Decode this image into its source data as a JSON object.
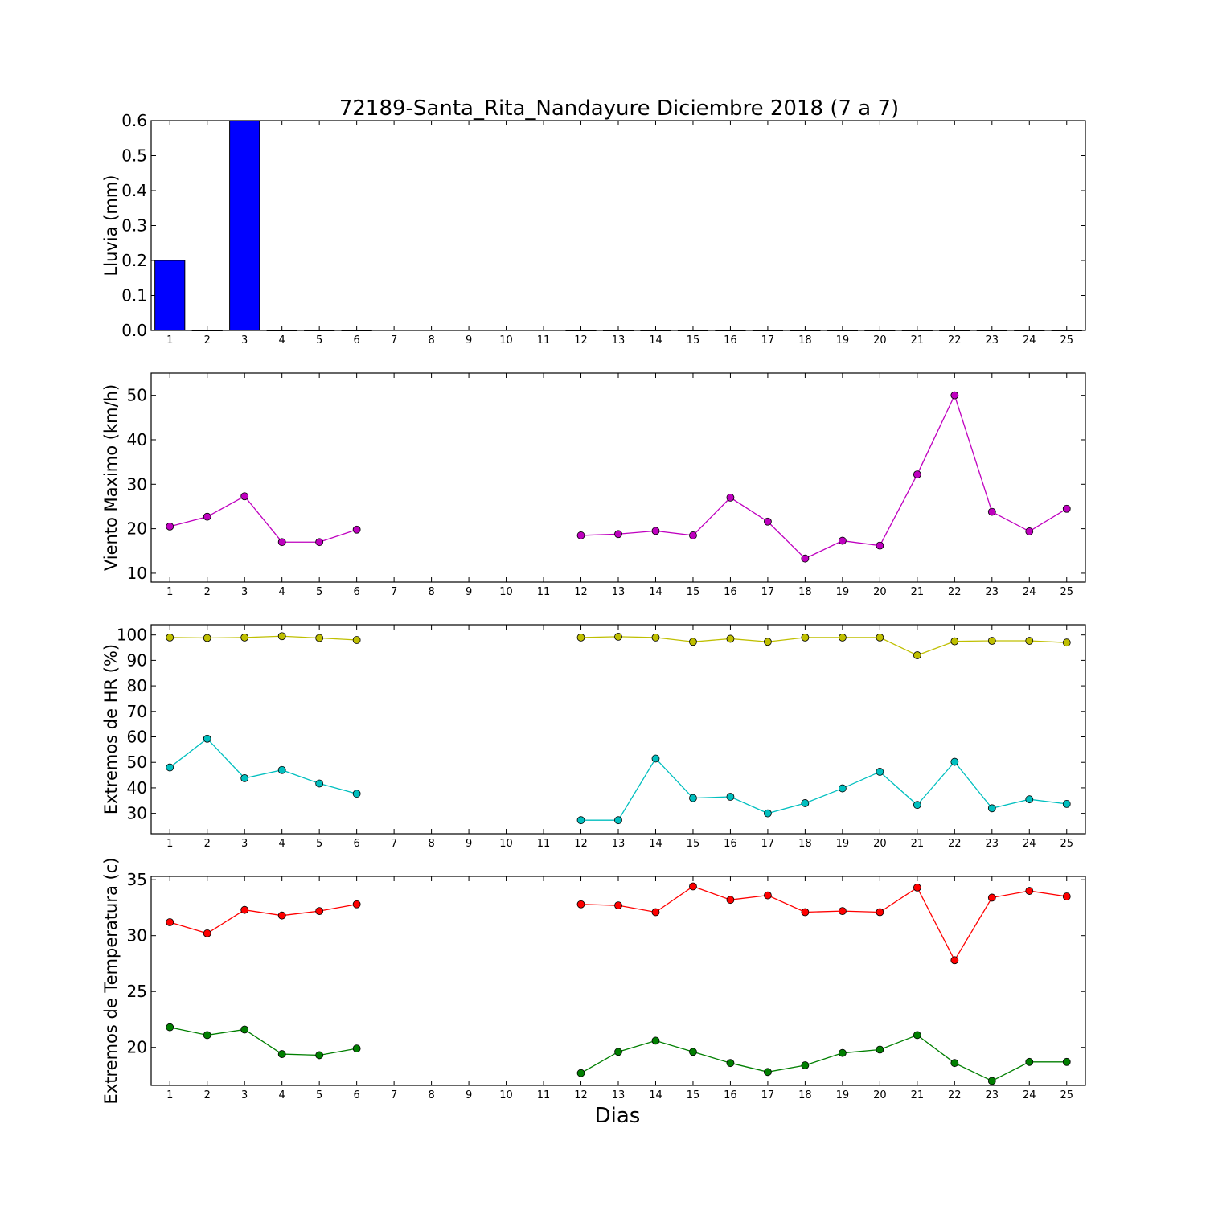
{
  "figure": {
    "title": "72189-Santa_Rita_Nandayure Diciembre 2018  (7 a 7)",
    "xlabel": "Dias"
  },
  "chart_data": [
    {
      "type": "bar",
      "id": "rain",
      "ylabel": "Lluvia (mm)",
      "x": [
        1,
        2,
        3,
        4,
        5,
        6,
        7,
        8,
        9,
        10,
        11,
        12,
        13,
        14,
        15,
        16,
        17,
        18,
        19,
        20,
        21,
        22,
        23,
        24,
        25
      ],
      "values": [
        0.2,
        0,
        0.6,
        0,
        0,
        0,
        null,
        null,
        null,
        null,
        null,
        0,
        0,
        0,
        0,
        0,
        0,
        0,
        0,
        0,
        0,
        0,
        0,
        0,
        0
      ],
      "ylim": [
        0,
        0.6
      ],
      "yticks": [
        0.0,
        0.1,
        0.2,
        0.3,
        0.4,
        0.5,
        0.6
      ],
      "ytick_labels": [
        "0.0",
        "0.1",
        "0.2",
        "0.3",
        "0.4",
        "0.5",
        "0.6"
      ],
      "color": "#0000ff"
    },
    {
      "type": "line",
      "id": "wind",
      "ylabel": "Viento Maximo (km/h)",
      "x": [
        1,
        2,
        3,
        4,
        5,
        6,
        7,
        8,
        9,
        10,
        11,
        12,
        13,
        14,
        15,
        16,
        17,
        18,
        19,
        20,
        21,
        22,
        23,
        24,
        25
      ],
      "ylim": [
        8,
        55
      ],
      "yticks": [
        10,
        20,
        30,
        40,
        50
      ],
      "ytick_labels": [
        "10",
        "20",
        "30",
        "40",
        "50"
      ],
      "series": [
        {
          "color": "#bf00bf",
          "values": [
            20.5,
            22.7,
            27.3,
            17,
            17,
            19.8,
            null,
            null,
            null,
            null,
            null,
            18.5,
            18.8,
            19.5,
            18.5,
            27,
            21.6,
            13.3,
            17.3,
            16.2,
            32.2,
            50,
            23.8,
            19.4,
            24.5
          ]
        }
      ]
    },
    {
      "type": "line",
      "id": "humidity",
      "ylabel": "Extremos de HR (%)",
      "x": [
        1,
        2,
        3,
        4,
        5,
        6,
        7,
        8,
        9,
        10,
        11,
        12,
        13,
        14,
        15,
        16,
        17,
        18,
        19,
        20,
        21,
        22,
        23,
        24,
        25
      ],
      "ylim": [
        22,
        104
      ],
      "yticks": [
        30,
        40,
        50,
        60,
        70,
        80,
        90,
        100
      ],
      "ytick_labels": [
        "30",
        "40",
        "50",
        "60",
        "70",
        "80",
        "90",
        "100"
      ],
      "series": [
        {
          "color": "#bfbf00",
          "values": [
            99,
            98.8,
            99,
            99.5,
            98.8,
            98,
            null,
            null,
            null,
            null,
            null,
            99,
            99.3,
            99,
            97.3,
            98.5,
            97.3,
            99,
            99,
            99,
            92,
            97.5,
            97.7,
            97.7,
            97
          ]
        },
        {
          "color": "#00bfbf",
          "values": [
            48,
            59.3,
            43.8,
            47,
            41.7,
            37.7,
            null,
            null,
            null,
            null,
            null,
            27.3,
            27.3,
            51.5,
            36,
            36.5,
            30,
            34,
            39.8,
            46.3,
            33.3,
            50.2,
            32,
            35.5,
            33.7
          ]
        }
      ]
    },
    {
      "type": "line",
      "id": "temperature",
      "ylabel": "Extremos de Temperatura (c)",
      "x": [
        1,
        2,
        3,
        4,
        5,
        6,
        7,
        8,
        9,
        10,
        11,
        12,
        13,
        14,
        15,
        16,
        17,
        18,
        19,
        20,
        21,
        22,
        23,
        24,
        25
      ],
      "ylim": [
        16.6,
        35.3
      ],
      "yticks": [
        20,
        25,
        30,
        35
      ],
      "ytick_labels": [
        "20",
        "25",
        "30",
        "35"
      ],
      "series": [
        {
          "color": "#ff0000",
          "values": [
            31.2,
            30.2,
            32.3,
            31.8,
            32.2,
            32.8,
            null,
            null,
            null,
            null,
            null,
            32.8,
            32.7,
            32.1,
            34.4,
            33.2,
            33.6,
            32.1,
            32.2,
            32.1,
            34.3,
            27.8,
            33.4,
            34,
            33.5
          ]
        },
        {
          "color": "#007f00",
          "values": [
            21.8,
            21.1,
            21.6,
            19.4,
            19.3,
            19.9,
            null,
            null,
            null,
            null,
            null,
            17.7,
            19.6,
            20.6,
            19.6,
            18.6,
            17.8,
            18.4,
            19.5,
            19.8,
            21.1,
            18.6,
            17,
            18.7,
            18.7
          ]
        }
      ]
    }
  ]
}
